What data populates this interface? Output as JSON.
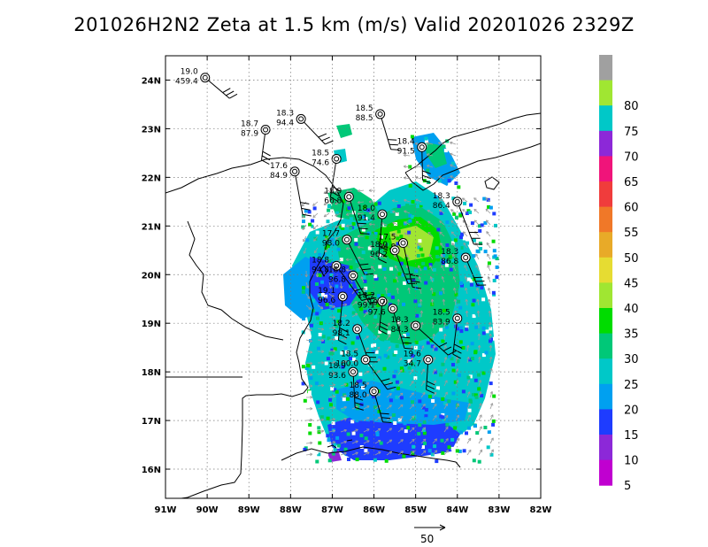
{
  "title": "201026H2N2 Zeta at 1.5 km (m/s) Valid 20201026 2329Z",
  "map": {
    "lon_range": [
      -91,
      -82
    ],
    "lat_range": [
      15.4,
      24.5
    ],
    "lon_ticks": [
      {
        "lon": -91,
        "label": "91W"
      },
      {
        "lon": -90,
        "label": "90W"
      },
      {
        "lon": -89,
        "label": "89W"
      },
      {
        "lon": -88,
        "label": "88W"
      },
      {
        "lon": -87,
        "label": "87W"
      },
      {
        "lon": -86,
        "label": "86W"
      },
      {
        "lon": -85,
        "label": "85W"
      },
      {
        "lon": -84,
        "label": "84W"
      },
      {
        "lon": -83,
        "label": "83W"
      },
      {
        "lon": -82,
        "label": "82W"
      }
    ],
    "lat_ticks": [
      {
        "lat": 16,
        "label": "16N"
      },
      {
        "lat": 17,
        "label": "17N"
      },
      {
        "lat": 18,
        "label": "18N"
      },
      {
        "lat": 19,
        "label": "19N"
      },
      {
        "lat": 20,
        "label": "20N"
      },
      {
        "lat": 21,
        "label": "21N"
      },
      {
        "lat": 22,
        "label": "22N"
      },
      {
        "lat": 23,
        "label": "23N"
      },
      {
        "lat": 24,
        "label": "24N"
      }
    ],
    "grid": "dotted"
  },
  "colorbar": {
    "levels": [
      {
        "label": "",
        "color": "#a0a0a0"
      },
      {
        "label": "80",
        "color": "#a0e632"
      },
      {
        "label": "75",
        "color": "#00c8c8"
      },
      {
        "label": "70",
        "color": "#8c28d8"
      },
      {
        "label": "65",
        "color": "#f0147a"
      },
      {
        "label": "60",
        "color": "#f03c3c"
      },
      {
        "label": "55",
        "color": "#f07828"
      },
      {
        "label": "50",
        "color": "#e8aa28"
      },
      {
        "label": "45",
        "color": "#e6dc32"
      },
      {
        "label": "40",
        "color": "#a0e632"
      },
      {
        "label": "35",
        "color": "#00dc00"
      },
      {
        "label": "30",
        "color": "#00c878"
      },
      {
        "label": "25",
        "color": "#00c8c8"
      },
      {
        "label": "20",
        "color": "#00a0f0"
      },
      {
        "label": "15",
        "color": "#1e3cff"
      },
      {
        "label": "10",
        "color": "#8c28d8"
      },
      {
        "label": "5",
        "color": "#c000d0"
      }
    ]
  },
  "stations": [
    {
      "lon": -90.05,
      "lat": 24.05,
      "top": "19.0",
      "bottom": "459.4"
    },
    {
      "lon": -87.75,
      "lat": 23.2,
      "top": "18.3",
      "bottom": "94.4"
    },
    {
      "lon": -88.6,
      "lat": 22.98,
      "top": "18.7",
      "bottom": "87.9"
    },
    {
      "lon": -85.85,
      "lat": 23.3,
      "top": "18.5",
      "bottom": "88.5"
    },
    {
      "lon": -84.85,
      "lat": 22.62,
      "top": "18.4",
      "bottom": "91.5"
    },
    {
      "lon": -86.9,
      "lat": 22.38,
      "top": "18.5",
      "bottom": "74.6"
    },
    {
      "lon": -87.9,
      "lat": 22.12,
      "top": "17.6",
      "bottom": "84.9"
    },
    {
      "lon": -86.6,
      "lat": 21.6,
      "top": "18.9",
      "bottom": "66.8"
    },
    {
      "lon": -84.0,
      "lat": 21.5,
      "top": "18.3",
      "bottom": "86.4"
    },
    {
      "lon": -85.8,
      "lat": 21.24,
      "top": "18.0",
      "bottom": "91.4"
    },
    {
      "lon": -86.65,
      "lat": 20.72,
      "top": "17.7",
      "bottom": "98.0"
    },
    {
      "lon": -85.3,
      "lat": 20.65,
      "top": "17.5",
      "bottom": "94.9"
    },
    {
      "lon": -85.5,
      "lat": 20.5,
      "top": "18.0",
      "bottom": "96.2"
    },
    {
      "lon": -83.8,
      "lat": 20.35,
      "top": "18.3",
      "bottom": "86.8"
    },
    {
      "lon": -86.9,
      "lat": 20.18,
      "top": "18.8",
      "bottom": "94.8"
    },
    {
      "lon": -86.5,
      "lat": 19.98,
      "top": "18.8",
      "bottom": "96.8"
    },
    {
      "lon": -86.75,
      "lat": 19.55,
      "top": "19.1",
      "bottom": "96.6"
    },
    {
      "lon": -85.8,
      "lat": 19.45,
      "top": "18.2",
      "bottom": "99.1"
    },
    {
      "lon": -85.55,
      "lat": 19.3,
      "top": "19.7",
      "bottom": "97.6"
    },
    {
      "lon": -85.0,
      "lat": 18.95,
      "top": "18.3",
      "bottom": "84.3"
    },
    {
      "lon": -84.0,
      "lat": 19.1,
      "top": "18.5",
      "bottom": "83.9"
    },
    {
      "lon": -86.4,
      "lat": 18.88,
      "top": "18.2",
      "bottom": "98.1"
    },
    {
      "lon": -86.2,
      "lat": 18.25,
      "top": "18.5",
      "bottom": "100.0"
    },
    {
      "lon": -86.5,
      "lat": 18.0,
      "top": "18.9",
      "bottom": "93.6"
    },
    {
      "lon": -84.7,
      "lat": 18.25,
      "top": "19.6",
      "bottom": "34.7"
    },
    {
      "lon": -86.0,
      "lat": 17.6,
      "top": "18.5",
      "bottom": "88.0"
    }
  ],
  "reference_vector": {
    "label": "50"
  }
}
